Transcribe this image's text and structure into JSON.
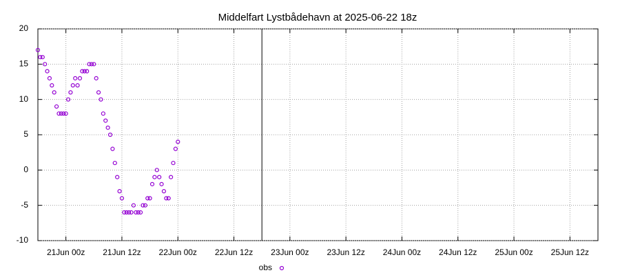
{
  "chart_data": {
    "type": "scatter",
    "title": "Middelfart Lystbådehavn at 2025-06-22 18z",
    "series": [
      {
        "name": "obs",
        "color": "#9400d3",
        "x": [
          -6,
          -5.5,
          -5,
          -4.5,
          -4,
          -3.5,
          -3,
          -2.5,
          -2,
          -1.5,
          -1,
          -0.5,
          0,
          0.5,
          1,
          1.5,
          2,
          2.5,
          3,
          3.5,
          4,
          4.5,
          5,
          5.5,
          6,
          6.5,
          7,
          7.5,
          8,
          8.5,
          9,
          9.5,
          10,
          10.5,
          11,
          11.5,
          12,
          12.5,
          13,
          13.5,
          14,
          14.5,
          15,
          15.5,
          16,
          16.5,
          17,
          17.5,
          18,
          18.5,
          19,
          19.5,
          20,
          20.5,
          21,
          21.5,
          22,
          22.5,
          23,
          23.5,
          24
        ],
        "values": [
          17,
          16,
          16,
          15,
          14,
          13,
          12,
          11,
          9,
          8,
          8,
          8,
          8,
          10,
          11,
          12,
          13,
          12,
          13,
          14,
          14,
          14,
          15,
          15,
          15,
          13,
          11,
          10,
          8,
          7,
          6,
          5,
          3,
          1,
          -1,
          -3,
          -4,
          -6,
          -6,
          -6,
          -6,
          -5,
          -6,
          -6,
          -6,
          -5,
          -5,
          -4,
          -4,
          -2,
          -1,
          0,
          -1,
          -2,
          -3,
          -4,
          -4,
          -1,
          1,
          3,
          4
        ]
      }
    ],
    "xlim": [
      -6,
      114
    ],
    "xticks": [
      {
        "value": 0,
        "label": "21Jun 00z"
      },
      {
        "value": 12,
        "label": "21Jun 12z"
      },
      {
        "value": 24,
        "label": "22Jun 00z"
      },
      {
        "value": 36,
        "label": "22Jun 12z"
      },
      {
        "value": 48,
        "label": "23Jun 00z"
      },
      {
        "value": 60,
        "label": "23Jun 12z"
      },
      {
        "value": 72,
        "label": "24Jun 00z"
      },
      {
        "value": 84,
        "label": "24Jun 12z"
      },
      {
        "value": 96,
        "label": "25Jun 00z"
      },
      {
        "value": 108,
        "label": "25Jun 12z"
      }
    ],
    "ylim": [
      -10,
      20
    ],
    "yticks": [
      -10,
      -5,
      0,
      5,
      10,
      15,
      20
    ],
    "marker_x": 42,
    "grid": true,
    "legend": "bottom"
  }
}
